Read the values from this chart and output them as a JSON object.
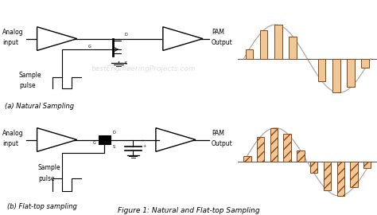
{
  "title": "Figure 1: Natural and Flat-top Sampling",
  "natural_label": "(a) Natural Sampling",
  "flattop_label": "(b) Flat-top sampling",
  "bg_color": "#ffffff",
  "sine_color": "#aaaaaa",
  "bar_edge_color": "#8B4513",
  "bar_fill_color": "#f0c898",
  "hatch_pattern": "///",
  "watermark": "bestEngineeringProjects.com",
  "n_samples_natural": 9,
  "n_samples_flat": 10,
  "text_color": "#222222"
}
